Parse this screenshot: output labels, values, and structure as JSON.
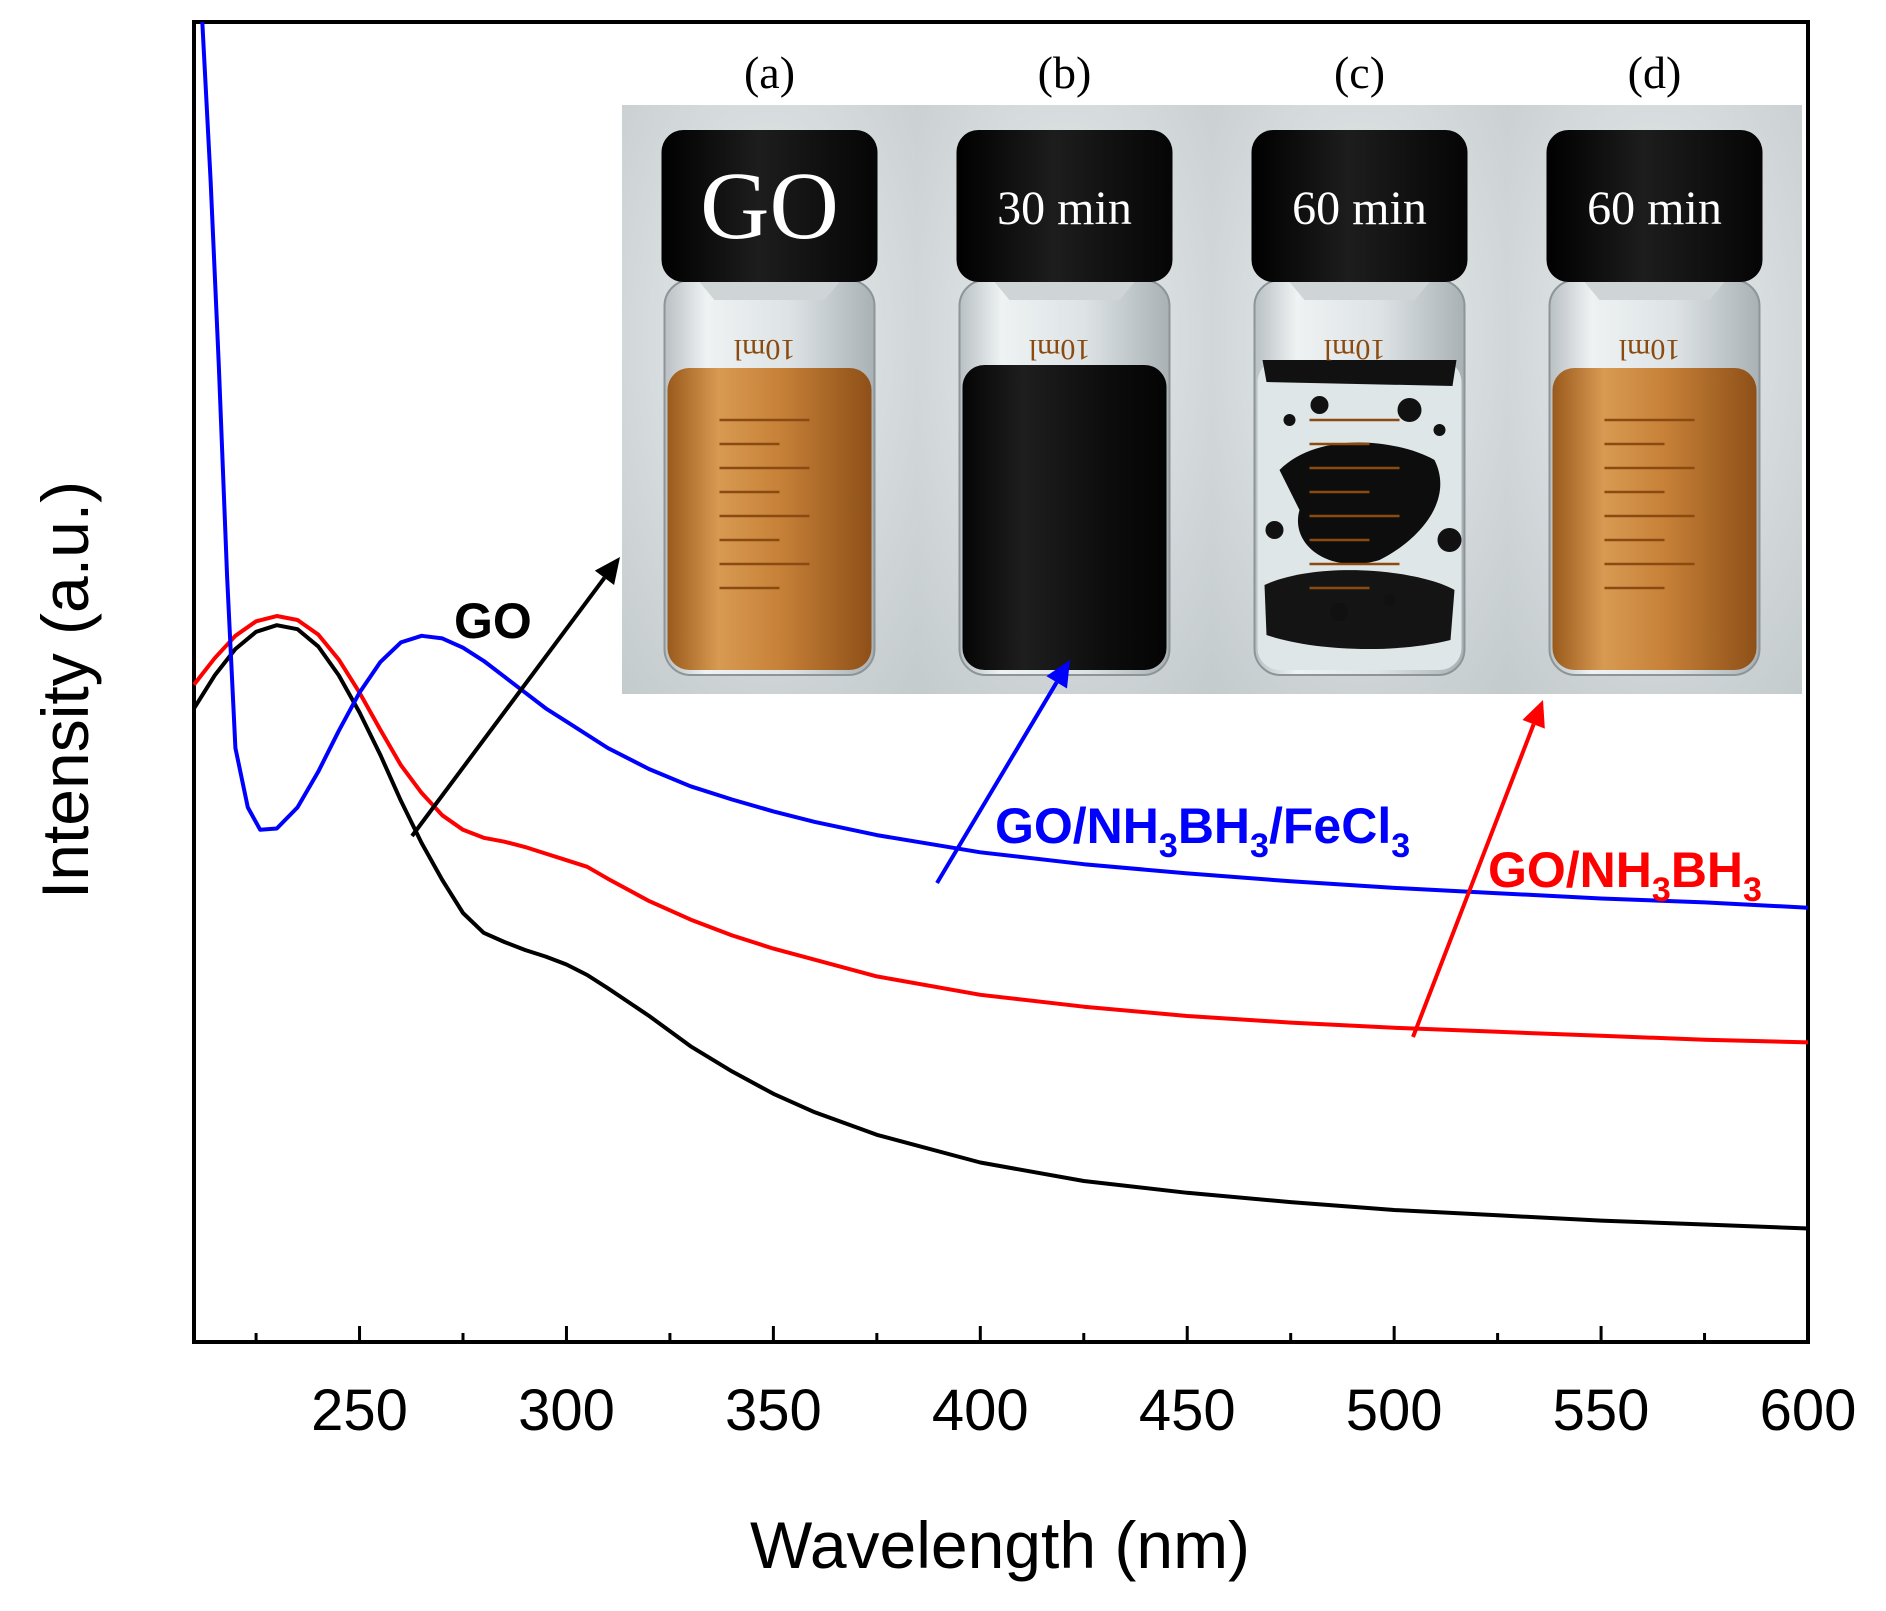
{
  "chart_data": {
    "type": "line",
    "title": "",
    "xlabel": "Wavelength (nm)",
    "ylabel": "Intensity (a.u.)",
    "xlim": [
      210,
      600
    ],
    "ylim": [
      0,
      100
    ],
    "xticks": [
      250,
      300,
      350,
      400,
      450,
      500,
      550,
      600
    ],
    "xtick_labels": [
      "250",
      "300",
      "350",
      "400",
      "450",
      "500",
      "550",
      "600"
    ],
    "y_tick_labels_shown": false,
    "series": [
      {
        "name": "GO",
        "color": "#000000",
        "x": [
          210,
          215,
          220,
          225,
          230,
          235,
          240,
          245,
          250,
          255,
          260,
          265,
          270,
          275,
          280,
          285,
          290,
          295,
          300,
          305,
          310,
          320,
          330,
          340,
          350,
          360,
          375,
          400,
          425,
          450,
          475,
          500,
          525,
          550,
          575,
          600
        ],
        "y": [
          48,
          50.5,
          52.5,
          53.8,
          54.3,
          54,
          52.7,
          50.5,
          47.7,
          44.5,
          41,
          37.8,
          35,
          32.5,
          31,
          30.3,
          29.7,
          29.2,
          28.6,
          27.8,
          26.8,
          24.7,
          22.4,
          20.5,
          18.8,
          17.4,
          15.7,
          13.6,
          12.2,
          11.3,
          10.6,
          10,
          9.6,
          9.2,
          8.9,
          8.6
        ]
      },
      {
        "name": "GO/NH3BH3",
        "color": "#ff0000",
        "x": [
          210,
          215,
          220,
          225,
          230,
          235,
          240,
          245,
          250,
          255,
          260,
          265,
          270,
          275,
          280,
          285,
          290,
          295,
          300,
          305,
          310,
          320,
          330,
          340,
          350,
          375,
          400,
          425,
          450,
          475,
          500,
          525,
          550,
          575,
          600
        ],
        "y": [
          49.8,
          51.8,
          53.5,
          54.6,
          55,
          54.7,
          53.6,
          51.7,
          49.2,
          46.4,
          43.7,
          41.6,
          39.9,
          38.8,
          38.2,
          37.9,
          37.5,
          37,
          36.5,
          36,
          35.1,
          33.4,
          32,
          30.8,
          29.8,
          27.7,
          26.3,
          25.4,
          24.7,
          24.2,
          23.8,
          23.5,
          23.2,
          22.9,
          22.7
        ]
      },
      {
        "name": "GO/NH3BH3/FeCl3",
        "color": "#0000ff",
        "x": [
          212,
          214,
          216,
          218,
          220,
          223,
          226,
          230,
          235,
          240,
          245,
          250,
          255,
          260,
          265,
          270,
          275,
          280,
          285,
          290,
          295,
          300,
          310,
          320,
          330,
          340,
          350,
          360,
          375,
          400,
          425,
          450,
          475,
          500,
          525,
          550,
          575,
          600
        ],
        "y": [
          100,
          88,
          74,
          58,
          45,
          40.5,
          38.8,
          38.9,
          40.5,
          43.2,
          46.3,
          49.2,
          51.5,
          53,
          53.5,
          53.3,
          52.6,
          51.6,
          50.4,
          49.2,
          48,
          47,
          45,
          43.4,
          42.1,
          41.1,
          40.2,
          39.4,
          38.4,
          37.1,
          36.2,
          35.5,
          34.9,
          34.4,
          34,
          33.6,
          33.3,
          32.9
        ]
      }
    ],
    "annotations": [
      {
        "text": "GO",
        "color": "#000000"
      },
      {
        "text": "GO/NH3BH3/FeCl3",
        "color": "#0000ff"
      },
      {
        "text": "GO/NH3BH3",
        "color": "#ff0000"
      }
    ],
    "inset": {
      "panels": [
        {
          "label": "(a)",
          "cap_text": "GO",
          "liquid": "amber"
        },
        {
          "label": "(b)",
          "cap_text": "30 min",
          "liquid": "black"
        },
        {
          "label": "(c)",
          "cap_text": "60 min",
          "liquid": "clear with black flakes"
        },
        {
          "label": "(d)",
          "cap_text": "60 min",
          "liquid": "amber"
        }
      ],
      "vial_marking": "10ml"
    }
  },
  "labels": {
    "go_main": "GO",
    "blue_prefix": "GO/NH",
    "blue_sub1": "3",
    "blue_mid": "BH",
    "blue_sub2": "3",
    "blue_suffix": "/FeCl",
    "blue_sub3": "3",
    "red_prefix": "GO/NH",
    "red_sub1": "3",
    "red_mid": "BH",
    "red_sub2": "3"
  },
  "colors": {
    "go": "#000000",
    "reduced": "#ff0000",
    "fecl3": "#0000ff",
    "amber_liquid": "#c8853a",
    "cap": "#0e0e0e"
  }
}
